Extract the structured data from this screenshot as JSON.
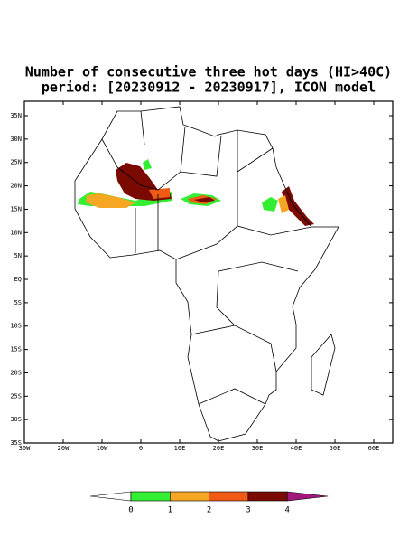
{
  "header": {
    "title": [
      "Number of consecutive three hot days (HI>40C)",
      "period: [20230912 - 20230917], ICON model"
    ]
  },
  "map": {
    "lat_labels": [
      "35N",
      "30N",
      "25N",
      "20N",
      "15N",
      "10N",
      "5N",
      "EQ",
      "5S",
      "10S",
      "15S",
      "20S",
      "25S",
      "30S",
      "35S"
    ],
    "lon_labels": [
      "30W",
      "20W",
      "10W",
      "0",
      "10E",
      "20E",
      "30E",
      "40E",
      "50E",
      "60E"
    ]
  },
  "colorbar": {
    "labels": [
      "0",
      "1",
      "2",
      "3",
      "4"
    ],
    "colors": [
      "#ffffff",
      "#33ee33",
      "#f5a623",
      "#f05a14",
      "#7a0a00",
      "#a0187a"
    ]
  }
}
